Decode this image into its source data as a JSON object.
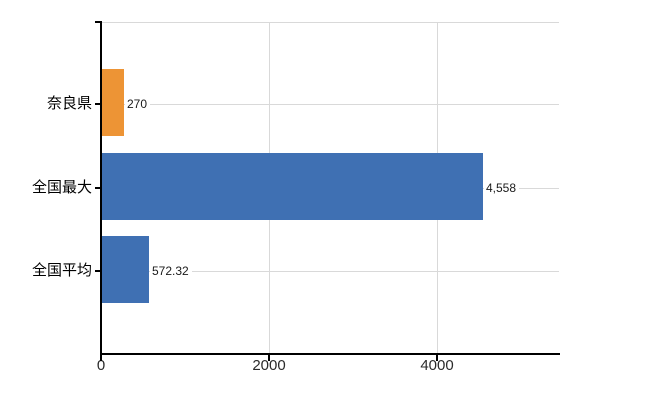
{
  "chart_data": {
    "type": "bar",
    "orientation": "horizontal",
    "categories": [
      "奈良県",
      "全国最大",
      "全国平均"
    ],
    "values": [
      270,
      4558,
      572.32
    ],
    "value_labels": [
      "270",
      "4,558",
      "572.32"
    ],
    "series": [
      {
        "name": "奈良県",
        "value": 270,
        "label": "270",
        "color": "#ED9435"
      },
      {
        "name": "全国最大",
        "value": 4558,
        "label": "4,558",
        "color": "#3F70B3"
      },
      {
        "name": "全国平均",
        "value": 572.32,
        "label": "572.32",
        "color": "#3F70B3"
      }
    ],
    "bar_colors": [
      "#ED9435",
      "#3F70B3",
      "#3F70B3"
    ],
    "xlim": [
      0,
      5470
    ],
    "x_ticks": [
      0,
      2000,
      4000
    ],
    "x_tick_labels": [
      "0",
      "2000",
      "4000"
    ],
    "grid": true,
    "gridline_color": "#d9d9d9",
    "axis_color": "#000000",
    "legend": "none"
  }
}
